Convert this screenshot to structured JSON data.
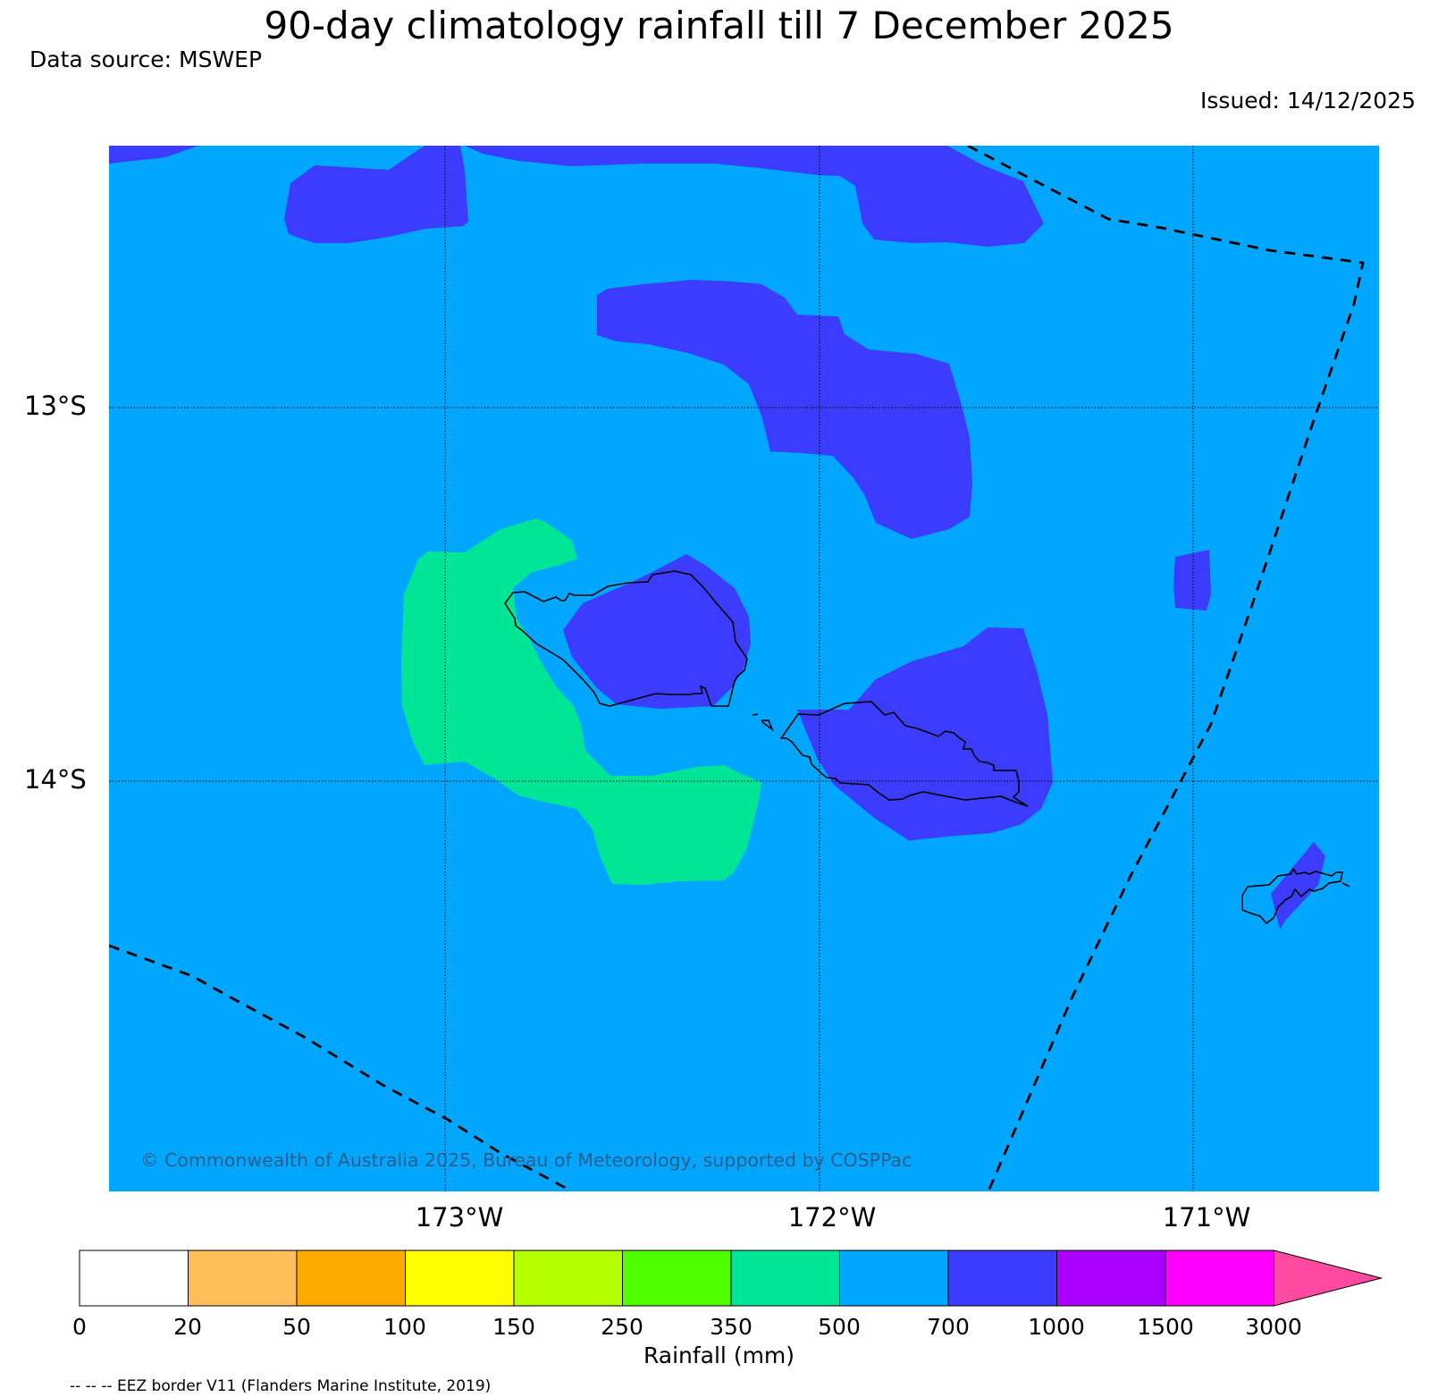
{
  "header": {
    "title": "90-day climatology rainfall till 7 December 2025",
    "source": "Data source: MSWEP",
    "issued": "Issued: 14/12/2025"
  },
  "map": {
    "lat_labels": [
      "13°S",
      "14°S"
    ],
    "lon_labels": [
      "173°W",
      "172°W",
      "171°W"
    ],
    "copyright": "© Commonwealth of Australia 2025, Bureau of Meteorology, supported by COSPPac",
    "background_color": "#00a6ff",
    "regions": [
      {
        "name": "rainfall-700-1000",
        "color": "#3c3cff"
      },
      {
        "name": "rainfall-350-500",
        "color": "#00e696"
      }
    ]
  },
  "colorbar": {
    "label": "Rainfall (mm)",
    "ticks": [
      "0",
      "20",
      "50",
      "100",
      "150",
      "250",
      "350",
      "500",
      "700",
      "1000",
      "1500",
      "3000"
    ],
    "colors": [
      "#ffffff",
      "#ffbe5a",
      "#ffaa00",
      "#ffff00",
      "#b4ff00",
      "#50ff00",
      "#00e696",
      "#00a6ff",
      "#3c3cff",
      "#aa00ff",
      "#ff00ff"
    ],
    "extend_color": "#ff4aa0"
  },
  "footer": {
    "eez_note": "-- -- -- EEZ border V11 (Flanders Marine Institute, 2019)"
  }
}
